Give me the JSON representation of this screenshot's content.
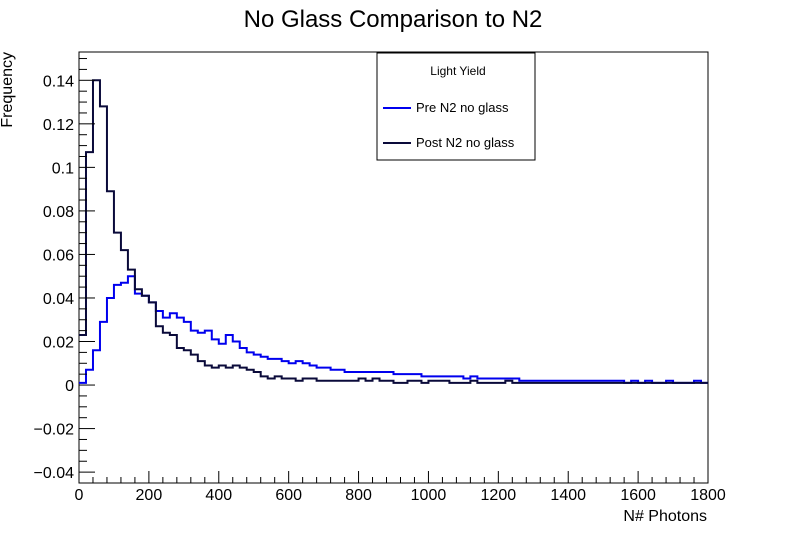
{
  "chart_data": {
    "type": "line",
    "title": "No Glass Comparison to N2",
    "xlabel": "N# Photons",
    "ylabel": "Frequency",
    "xlim": [
      0,
      1800
    ],
    "ylim": [
      -0.045,
      0.153
    ],
    "x_ticks": [
      0,
      200,
      400,
      600,
      800,
      1000,
      1200,
      1400,
      1600,
      1800
    ],
    "x_tick_labels": [
      "0",
      "200",
      "400",
      "600",
      "800",
      "1000",
      "1200",
      "1400",
      "1600",
      "1800"
    ],
    "y_ticks": [
      -0.04,
      -0.02,
      0,
      0.02,
      0.04,
      0.06,
      0.08,
      0.1,
      0.12,
      0.14
    ],
    "y_tick_labels": [
      "−0.04",
      "−0.02",
      "0",
      "0.02",
      "0.04",
      "0.06",
      "0.08",
      "0.1",
      "0.12",
      "0.14"
    ],
    "grid": false,
    "legend": {
      "title": "Light Yield",
      "placement": "top-center"
    },
    "bin_width": 20,
    "series": [
      {
        "name": "Pre N2 no glass",
        "color": "#0000ee",
        "values": [
          0.001,
          0.007,
          0.016,
          0.029,
          0.04,
          0.046,
          0.047,
          0.05,
          0.042,
          0.041,
          0.038,
          0.034,
          0.031,
          0.033,
          0.031,
          0.029,
          0.025,
          0.024,
          0.025,
          0.021,
          0.019,
          0.023,
          0.02,
          0.017,
          0.015,
          0.014,
          0.013,
          0.012,
          0.012,
          0.011,
          0.01,
          0.011,
          0.01,
          0.009,
          0.008,
          0.008,
          0.007,
          0.007,
          0.006,
          0.006,
          0.006,
          0.006,
          0.006,
          0.006,
          0.006,
          0.005,
          0.005,
          0.005,
          0.005,
          0.004,
          0.004,
          0.004,
          0.004,
          0.004,
          0.004,
          0.003,
          0.004,
          0.003,
          0.003,
          0.003,
          0.003,
          0.003,
          0.003,
          0.002,
          0.002,
          0.002,
          0.002,
          0.002,
          0.002,
          0.002,
          0.002,
          0.002,
          0.002,
          0.002,
          0.002,
          0.002,
          0.002,
          0.002,
          0.001,
          0.002,
          0.001,
          0.002,
          0.001,
          0.001,
          0.002,
          0.001,
          0.001,
          0.001,
          0.002,
          0.001
        ]
      },
      {
        "name": "Post N2 no glass",
        "color": "#0a0a3a",
        "values": [
          0.023,
          0.107,
          0.14,
          0.128,
          0.089,
          0.07,
          0.062,
          0.053,
          0.044,
          0.041,
          0.038,
          0.027,
          0.024,
          0.023,
          0.017,
          0.016,
          0.014,
          0.011,
          0.009,
          0.008,
          0.009,
          0.008,
          0.009,
          0.008,
          0.007,
          0.006,
          0.004,
          0.003,
          0.004,
          0.003,
          0.003,
          0.002,
          0.003,
          0.003,
          0.002,
          0.002,
          0.002,
          0.002,
          0.002,
          0.002,
          0.003,
          0.002,
          0.003,
          0.002,
          0.002,
          0.001,
          0.001,
          0.002,
          0.002,
          0.001,
          0.002,
          0.002,
          0.002,
          0.001,
          0.001,
          0.001,
          0.002,
          0.001,
          0.001,
          0.001,
          0.001,
          0.002,
          0.001,
          0.001,
          0.001,
          0.001,
          0.001,
          0.001,
          0.001,
          0.001,
          0.001,
          0.001,
          0.001,
          0.001,
          0.001,
          0.001,
          0.001,
          0.001,
          0.001,
          0.001,
          0.001,
          0.001,
          0.001,
          0.001,
          0.001,
          0.001,
          0.001,
          0.001,
          0.001,
          0.001
        ]
      }
    ]
  }
}
